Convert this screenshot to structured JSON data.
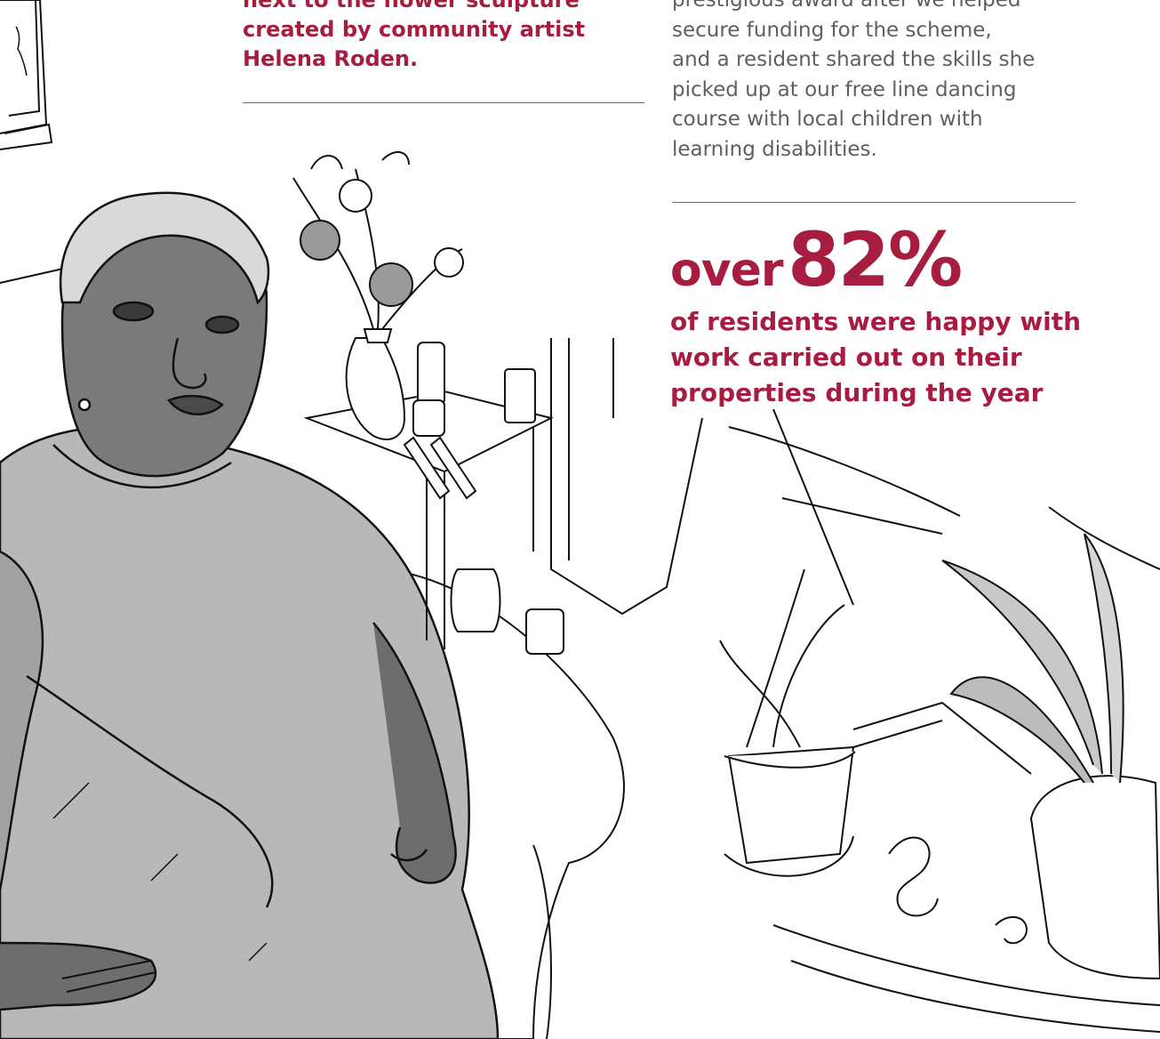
{
  "caption": {
    "lines": [
      "next to the flower sculpture",
      "created by community artist",
      "Helena Roden."
    ]
  },
  "body": {
    "lines": [
      "prestigious award after we helped",
      "secure funding for the scheme,",
      "and a resident shared the skills she",
      "picked up at our free line dancing",
      "course with local children with",
      "learning disabilities."
    ]
  },
  "stat": {
    "prefix": "over",
    "value": "82%",
    "description_lines": [
      "of residents were happy with",
      "work carried out on their",
      "properties during the year"
    ]
  },
  "colors": {
    "accent": "#a61d3f",
    "body_text": "#5f5f5f",
    "rule": "#b04a63"
  }
}
